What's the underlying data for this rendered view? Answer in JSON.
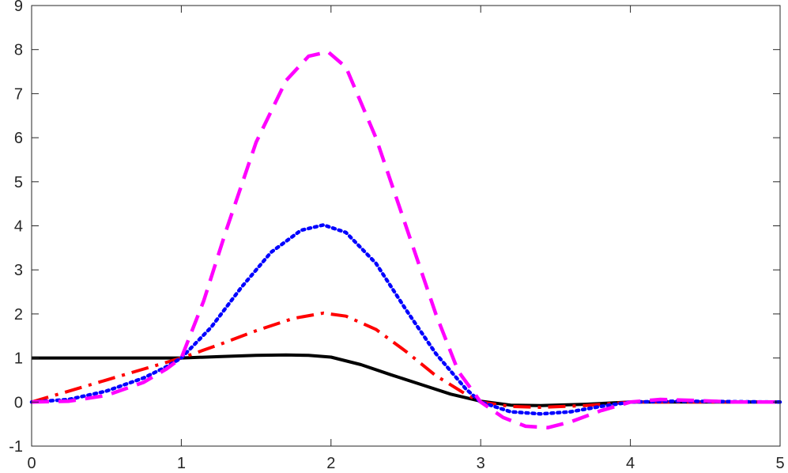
{
  "chart_data": {
    "type": "line",
    "title": "",
    "xlabel": "",
    "ylabel": "",
    "xlim": [
      0,
      5
    ],
    "ylim": [
      -1,
      9
    ],
    "grid": false,
    "legend": "none",
    "x_ticks": [
      0,
      1,
      2,
      3,
      4,
      5
    ],
    "y_ticks": [
      -1,
      0,
      1,
      2,
      3,
      4,
      5,
      6,
      7,
      8,
      9
    ],
    "x_tick_labels": [
      "0",
      "1",
      "2",
      "3",
      "4",
      "5"
    ],
    "y_tick_labels": [
      "-1",
      "0",
      "1",
      "2",
      "3",
      "4",
      "5",
      "6",
      "7",
      "8",
      "9"
    ],
    "series": [
      {
        "color": "#000000",
        "style": "solid",
        "x": [
          0,
          0.5,
          1,
          1.25,
          1.5,
          1.7,
          1.85,
          2,
          2.2,
          2.4,
          2.6,
          2.8,
          3,
          3.2,
          3.4,
          3.7,
          4,
          4.5,
          5
        ],
        "y": [
          1,
          1,
          1,
          1.03,
          1.06,
          1.07,
          1.06,
          1.02,
          0.85,
          0.62,
          0.4,
          0.18,
          0.02,
          -0.07,
          -0.08,
          -0.05,
          0,
          0,
          0
        ]
      },
      {
        "color": "#ff0000",
        "style": "dashdot",
        "x": [
          0,
          0.25,
          0.5,
          0.75,
          1,
          1.25,
          1.5,
          1.75,
          1.95,
          2.1,
          2.3,
          2.5,
          2.7,
          2.9,
          3,
          3.2,
          3.4,
          3.7,
          4,
          4.5,
          5
        ],
        "y": [
          0,
          0.25,
          0.5,
          0.75,
          1,
          1.3,
          1.62,
          1.9,
          2.02,
          1.95,
          1.65,
          1.15,
          0.6,
          0.18,
          0,
          -0.1,
          -0.12,
          -0.08,
          0,
          0,
          0
        ]
      },
      {
        "color": "#0000ff",
        "style": "dotted",
        "x": [
          0,
          0.25,
          0.5,
          0.75,
          0.9,
          1,
          1.2,
          1.4,
          1.6,
          1.8,
          1.95,
          2.1,
          2.3,
          2.5,
          2.7,
          2.9,
          3,
          3.2,
          3.4,
          3.6,
          3.8,
          4,
          4.3,
          5
        ],
        "y": [
          0,
          0.06,
          0.25,
          0.55,
          0.8,
          1,
          1.7,
          2.6,
          3.4,
          3.9,
          4.02,
          3.85,
          3.15,
          2.1,
          1.1,
          0.3,
          0,
          -0.22,
          -0.27,
          -0.22,
          -0.1,
          0,
          0.02,
          0
        ]
      },
      {
        "color": "#ff00ff",
        "style": "dashed",
        "x": [
          0,
          0.25,
          0.5,
          0.75,
          0.9,
          1,
          1.15,
          1.3,
          1.5,
          1.7,
          1.85,
          1.98,
          2.1,
          2.3,
          2.5,
          2.7,
          2.85,
          3,
          3.15,
          3.3,
          3.45,
          3.6,
          3.8,
          4,
          4.2,
          4.4,
          4.7,
          5
        ],
        "y": [
          0,
          0.02,
          0.15,
          0.45,
          0.75,
          1,
          2.3,
          3.9,
          5.9,
          7.3,
          7.85,
          7.95,
          7.6,
          6.0,
          4.0,
          2.0,
          0.7,
          0,
          -0.35,
          -0.55,
          -0.58,
          -0.45,
          -0.2,
          0,
          0.06,
          0.04,
          0,
          0
        ]
      }
    ]
  }
}
